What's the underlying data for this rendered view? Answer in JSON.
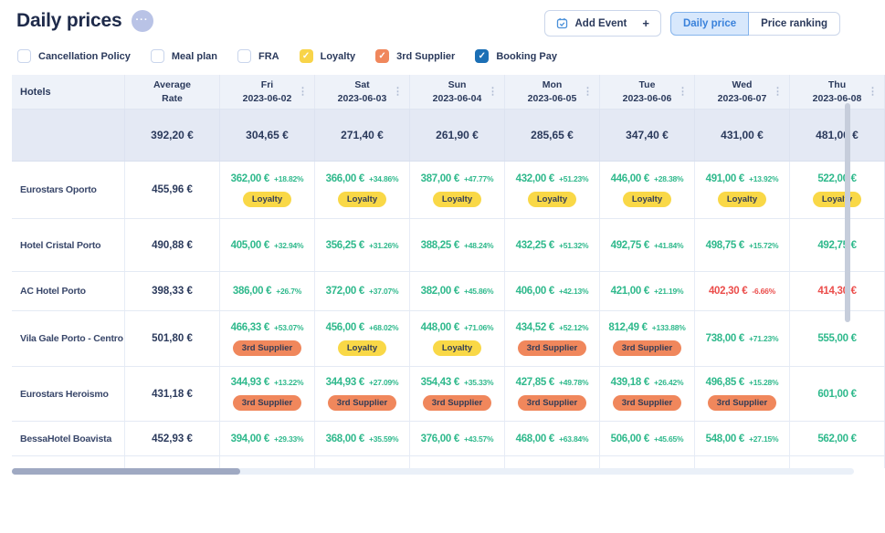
{
  "page": {
    "title": "Daily prices",
    "more_button_icon": "···"
  },
  "toolbar": {
    "add_event_label": "Add Event",
    "add_event_plus": "+",
    "daily_price_tab": "Daily price",
    "price_ranking_tab": "Price ranking"
  },
  "filters": [
    {
      "label": "Cancellation Policy",
      "checked": false,
      "color": null
    },
    {
      "label": "Meal plan",
      "checked": false,
      "color": null
    },
    {
      "label": "FRA",
      "checked": false,
      "color": null
    },
    {
      "label": "Loyalty",
      "checked": true,
      "color": "#F8D449"
    },
    {
      "label": "3rd Supplier",
      "checked": true,
      "color": "#F0875C"
    },
    {
      "label": "Booking Pay",
      "checked": true,
      "color": "#1B6FB5"
    }
  ],
  "colors": {
    "price_up": "#2FB98C",
    "price_down": "#EB4D4B",
    "badge_loyalty": "#F9D847",
    "badge_supplier": "#F0875C"
  },
  "table": {
    "hotels_header": "Hotels",
    "average_rate_header": "Average\nRate",
    "column_menu_icon": "⋮",
    "summary": {
      "average": "392,20 €"
    },
    "days": [
      {
        "dow": "Fri",
        "date": "2023-06-02",
        "avg": "304,65 €"
      },
      {
        "dow": "Sat",
        "date": "2023-06-03",
        "avg": "271,40 €"
      },
      {
        "dow": "Sun",
        "date": "2023-06-04",
        "avg": "261,90 €"
      },
      {
        "dow": "Mon",
        "date": "2023-06-05",
        "avg": "285,65 €"
      },
      {
        "dow": "Tue",
        "date": "2023-06-06",
        "avg": "347,40 €"
      },
      {
        "dow": "Wed",
        "date": "2023-06-07",
        "avg": "431,00 €"
      },
      {
        "dow": "Thu",
        "date": "2023-06-08",
        "avg": "481,00 €"
      }
    ],
    "rows": [
      {
        "hotel": "Eurostars Oporto",
        "avg": "455,96 €",
        "cells": [
          {
            "price": "362,00 €",
            "pct": "+18.82%",
            "dir": "up",
            "badge": "Loyalty"
          },
          {
            "price": "366,00 €",
            "pct": "+34.86%",
            "dir": "up",
            "badge": "Loyalty"
          },
          {
            "price": "387,00 €",
            "pct": "+47.77%",
            "dir": "up",
            "badge": "Loyalty"
          },
          {
            "price": "432,00 €",
            "pct": "+51.23%",
            "dir": "up",
            "badge": "Loyalty"
          },
          {
            "price": "446,00 €",
            "pct": "+28.38%",
            "dir": "up",
            "badge": "Loyalty"
          },
          {
            "price": "491,00 €",
            "pct": "+13.92%",
            "dir": "up",
            "badge": "Loyalty"
          },
          {
            "price": "522,00 €",
            "pct": "",
            "dir": "up",
            "badge": "Loyalty"
          }
        ]
      },
      {
        "hotel": "Hotel Cristal Porto",
        "avg": "490,88 €",
        "cells": [
          {
            "price": "405,00 €",
            "pct": "+32.94%",
            "dir": "up",
            "badge": null
          },
          {
            "price": "356,25 €",
            "pct": "+31.26%",
            "dir": "up",
            "badge": null
          },
          {
            "price": "388,25 €",
            "pct": "+48.24%",
            "dir": "up",
            "badge": null
          },
          {
            "price": "432,25 €",
            "pct": "+51.32%",
            "dir": "up",
            "badge": null
          },
          {
            "price": "492,75 €",
            "pct": "+41.84%",
            "dir": "up",
            "badge": null
          },
          {
            "price": "498,75 €",
            "pct": "+15.72%",
            "dir": "up",
            "badge": null
          },
          {
            "price": "492,75 €",
            "pct": "",
            "dir": "up",
            "badge": null
          }
        ]
      },
      {
        "hotel": "AC Hotel Porto",
        "avg": "398,33 €",
        "cells": [
          {
            "price": "386,00 €",
            "pct": "+26.7%",
            "dir": "up",
            "badge": null
          },
          {
            "price": "372,00 €",
            "pct": "+37.07%",
            "dir": "up",
            "badge": null
          },
          {
            "price": "382,00 €",
            "pct": "+45.86%",
            "dir": "up",
            "badge": null
          },
          {
            "price": "406,00 €",
            "pct": "+42.13%",
            "dir": "up",
            "badge": null
          },
          {
            "price": "421,00 €",
            "pct": "+21.19%",
            "dir": "up",
            "badge": null
          },
          {
            "price": "402,30 €",
            "pct": "-6.66%",
            "dir": "down",
            "badge": null
          },
          {
            "price": "414,30 €",
            "pct": "",
            "dir": "down",
            "badge": null
          }
        ]
      },
      {
        "hotel": "Vila Gale Porto - Centro",
        "avg": "501,80 €",
        "cells": [
          {
            "price": "466,33 €",
            "pct": "+53.07%",
            "dir": "up",
            "badge": "3rd Supplier"
          },
          {
            "price": "456,00 €",
            "pct": "+68.02%",
            "dir": "up",
            "badge": "Loyalty"
          },
          {
            "price": "448,00 €",
            "pct": "+71.06%",
            "dir": "up",
            "badge": "Loyalty"
          },
          {
            "price": "434,52 €",
            "pct": "+52.12%",
            "dir": "up",
            "badge": "3rd Supplier"
          },
          {
            "price": "812,49 €",
            "pct": "+133.88%",
            "dir": "up",
            "badge": "3rd Supplier"
          },
          {
            "price": "738,00 €",
            "pct": "+71.23%",
            "dir": "up",
            "badge": null
          },
          {
            "price": "555,00 €",
            "pct": "",
            "dir": "up",
            "badge": null
          }
        ]
      },
      {
        "hotel": "Eurostars Heroismo",
        "avg": "431,18 €",
        "cells": [
          {
            "price": "344,93 €",
            "pct": "+13.22%",
            "dir": "up",
            "badge": "3rd Supplier"
          },
          {
            "price": "344,93 €",
            "pct": "+27.09%",
            "dir": "up",
            "badge": "3rd Supplier"
          },
          {
            "price": "354,43 €",
            "pct": "+35.33%",
            "dir": "up",
            "badge": "3rd Supplier"
          },
          {
            "price": "427,85 €",
            "pct": "+49.78%",
            "dir": "up",
            "badge": "3rd Supplier"
          },
          {
            "price": "439,18 €",
            "pct": "+26.42%",
            "dir": "up",
            "badge": "3rd Supplier"
          },
          {
            "price": "496,85 €",
            "pct": "+15.28%",
            "dir": "up",
            "badge": "3rd Supplier"
          },
          {
            "price": "601,00 €",
            "pct": "",
            "dir": "up",
            "badge": null
          }
        ]
      },
      {
        "hotel": "BessaHotel Boavista",
        "avg": "452,93 €",
        "cells": [
          {
            "price": "394,00 €",
            "pct": "+29.33%",
            "dir": "up",
            "badge": null
          },
          {
            "price": "368,00 €",
            "pct": "+35.59%",
            "dir": "up",
            "badge": null
          },
          {
            "price": "376,00 €",
            "pct": "+43.57%",
            "dir": "up",
            "badge": null
          },
          {
            "price": "468,00 €",
            "pct": "+63.84%",
            "dir": "up",
            "badge": null
          },
          {
            "price": "506,00 €",
            "pct": "+45.65%",
            "dir": "up",
            "badge": null
          },
          {
            "price": "548,00 €",
            "pct": "+27.15%",
            "dir": "up",
            "badge": null
          },
          {
            "price": "562,00 €",
            "pct": "",
            "dir": "up",
            "badge": null
          }
        ]
      }
    ]
  }
}
